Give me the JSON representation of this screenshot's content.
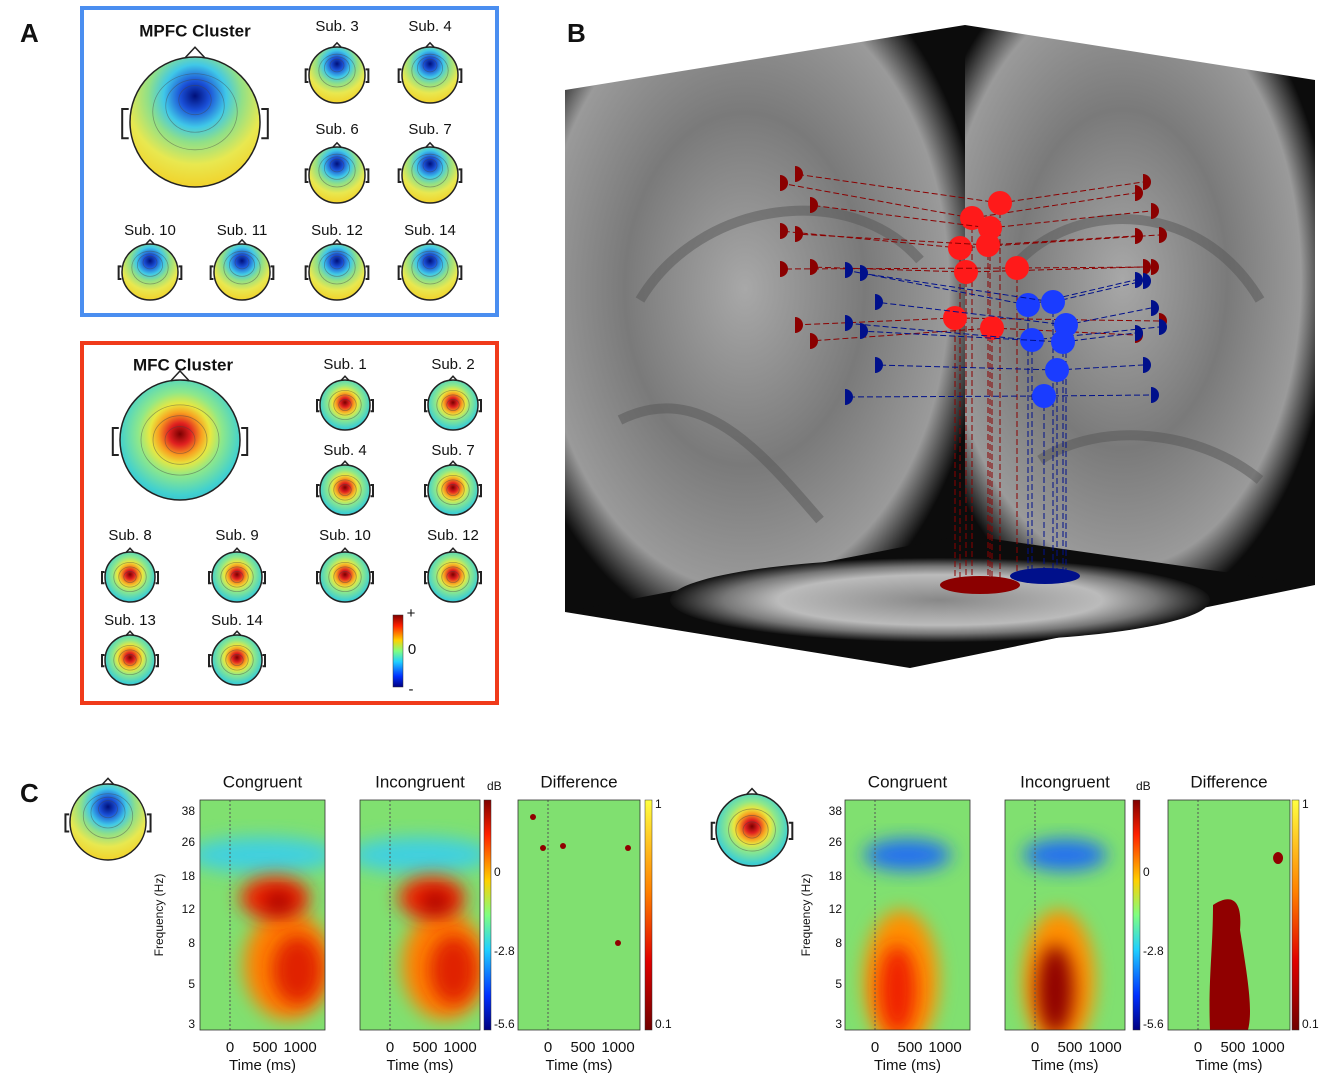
{
  "panel_a": {
    "label": "A",
    "mpfc": {
      "title": "MPFC Cluster",
      "subjects": [
        "Sub. 3",
        "Sub. 4",
        "Sub. 6",
        "Sub. 7",
        "Sub. 10",
        "Sub. 11",
        "Sub. 12",
        "Sub. 14"
      ]
    },
    "mfc": {
      "title": "MFC Cluster",
      "subjects": [
        "Sub. 1",
        "Sub. 2",
        "Sub. 4",
        "Sub. 7",
        "Sub. 8",
        "Sub. 9",
        "Sub. 10",
        "Sub. 12",
        "Sub. 13",
        "Sub. 14"
      ]
    },
    "colorbar": {
      "top": "+",
      "middle": "0",
      "bottom": "-"
    }
  },
  "panel_b": {
    "label": "B"
  },
  "panel_c": {
    "label": "C",
    "conditions": [
      "Congruent",
      "Incongruent",
      "Difference"
    ],
    "y_label": "Frequency (Hz)",
    "x_label": "Time (ms)",
    "yticks": [
      "38",
      "26",
      "18",
      "12",
      "8",
      "5",
      "3"
    ],
    "xticks": [
      "0",
      "500",
      "1000"
    ],
    "db_unit": "dB",
    "db_ticks": [
      "0",
      "-2.8",
      "-5.6"
    ],
    "diff_ticks": [
      "1",
      "0.1"
    ]
  }
}
